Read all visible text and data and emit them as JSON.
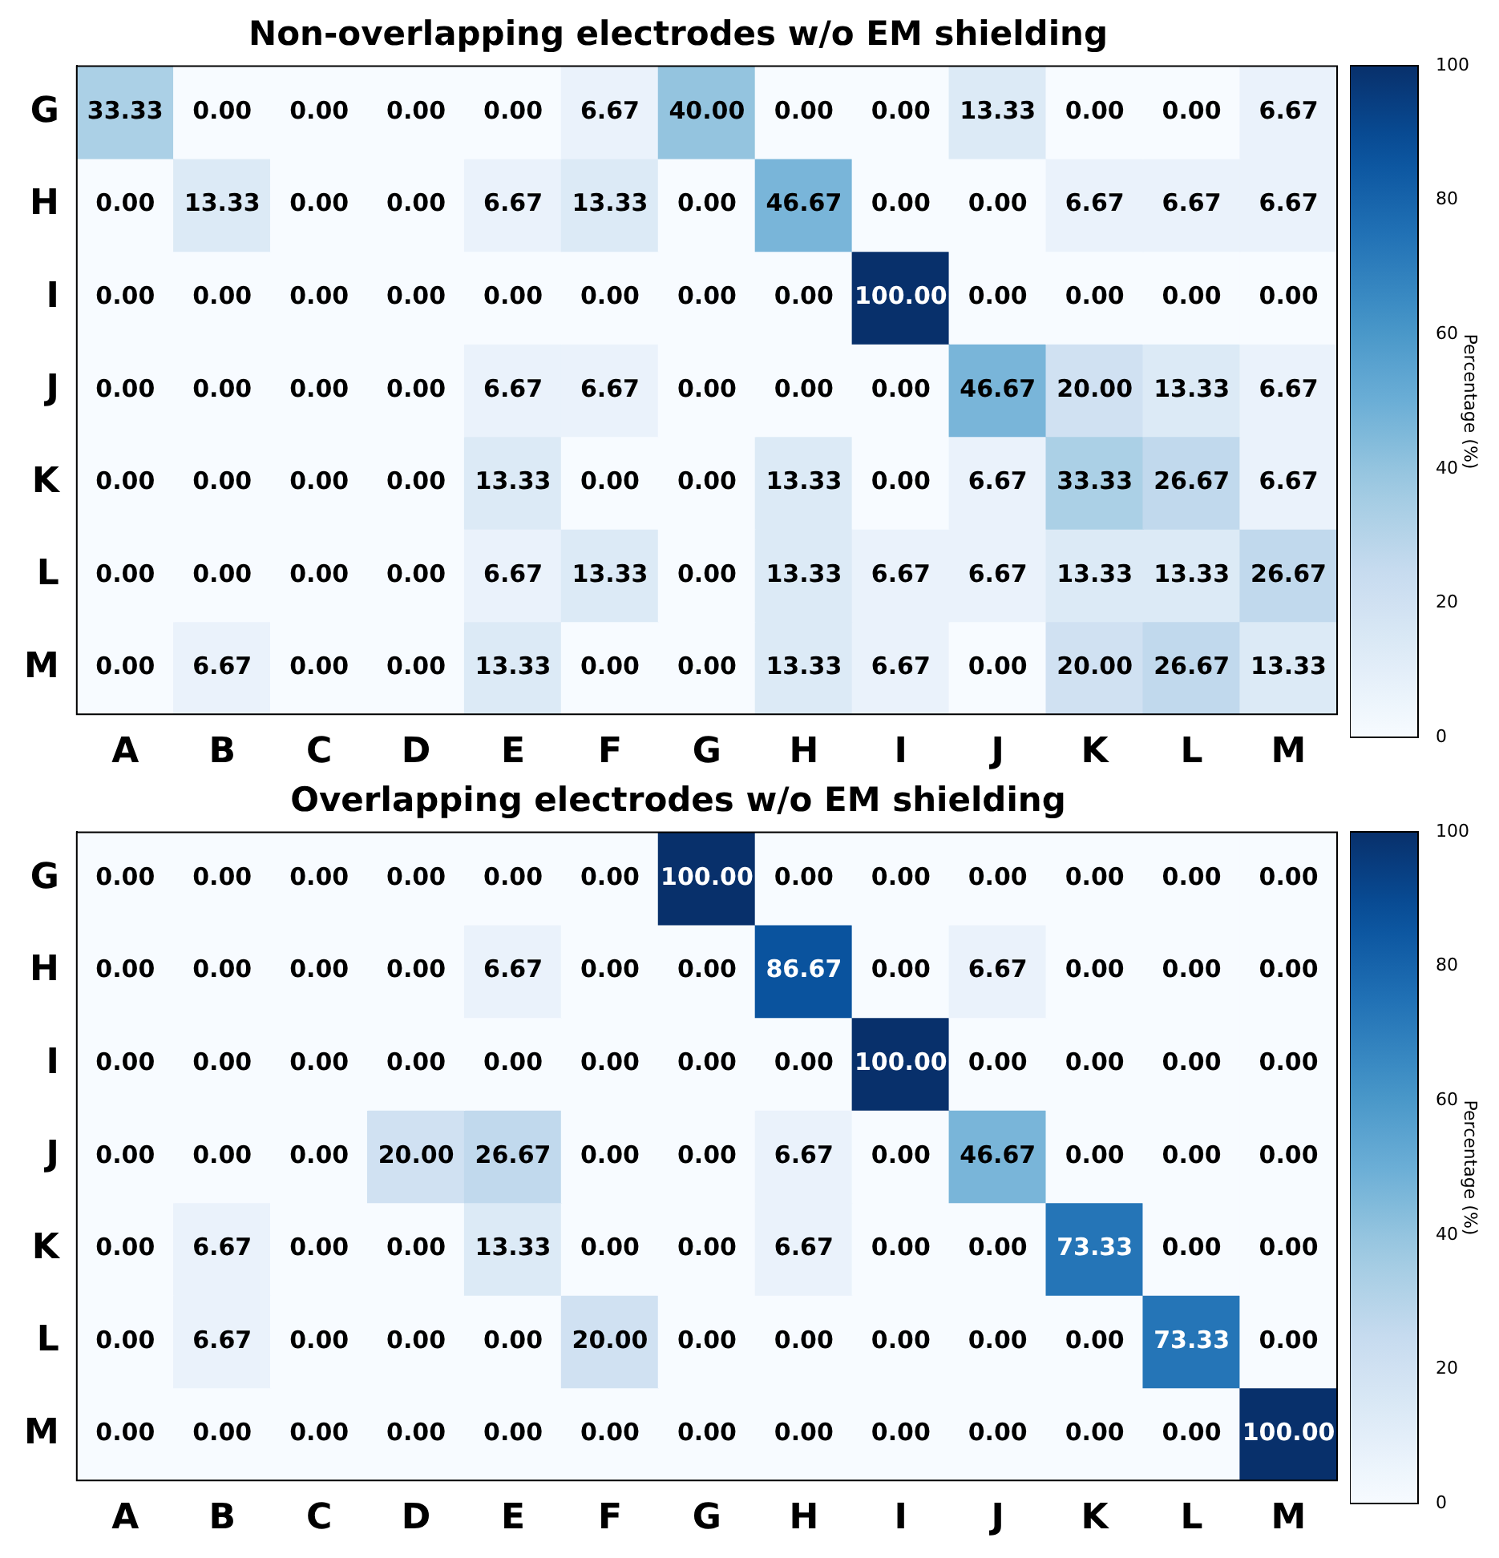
{
  "chart_data": [
    {
      "type": "heatmap",
      "title": "Non-overlapping electrodes w/o EM shielding",
      "clabel": "Percentage (%)",
      "categories": [
        "A",
        "B",
        "C",
        "D",
        "E",
        "F",
        "G",
        "H",
        "I",
        "J",
        "K",
        "L",
        "M"
      ],
      "y_categories": [
        "G",
        "H",
        "I",
        "J",
        "K",
        "L",
        "M"
      ],
      "cells": [
        [
          33.33,
          0,
          0,
          0,
          0,
          6.67,
          40,
          0,
          0,
          13.33,
          0,
          0,
          6.67
        ],
        [
          0,
          13.33,
          0,
          0,
          6.67,
          13.33,
          0,
          46.67,
          0,
          0,
          6.67,
          6.67,
          6.67
        ],
        [
          0,
          0,
          0,
          0,
          0,
          0,
          0,
          0,
          100,
          0,
          0,
          0,
          0
        ],
        [
          0,
          0,
          0,
          0,
          6.67,
          6.67,
          0,
          0,
          0,
          46.67,
          20,
          13.33,
          6.67
        ],
        [
          0,
          0,
          0,
          0,
          13.33,
          0,
          0,
          13.33,
          0,
          6.67,
          33.33,
          26.67,
          6.67
        ],
        [
          0,
          0,
          0,
          0,
          6.67,
          13.33,
          0,
          13.33,
          6.67,
          6.67,
          13.33,
          13.33,
          26.67
        ],
        [
          0,
          6.67,
          0,
          0,
          13.33,
          0,
          0,
          13.33,
          6.67,
          0,
          20,
          26.67,
          13.33
        ]
      ],
      "cell_labels": [
        [
          "33.33",
          "0.00",
          "0.00",
          "0.00",
          "0.00",
          "6.67",
          "40.00",
          "0.00",
          "0.00",
          "13.33",
          "0.00",
          "0.00",
          "6.67"
        ],
        [
          "0.00",
          "13.33",
          "0.00",
          "0.00",
          "6.67",
          "13.33",
          "0.00",
          "46.67",
          "0.00",
          "0.00",
          "6.67",
          "6.67",
          "6.67"
        ],
        [
          "0.00",
          "0.00",
          "0.00",
          "0.00",
          "0.00",
          "0.00",
          "0.00",
          "0.00",
          "100.00",
          "0.00",
          "0.00",
          "0.00",
          "0.00"
        ],
        [
          "0.00",
          "0.00",
          "0.00",
          "0.00",
          "6.67",
          "6.67",
          "0.00",
          "0.00",
          "0.00",
          "46.67",
          "20.00",
          "13.33",
          "6.67"
        ],
        [
          "0.00",
          "0.00",
          "0.00",
          "0.00",
          "13.33",
          "0.00",
          "0.00",
          "13.33",
          "0.00",
          "6.67",
          "33.33",
          "26.67",
          "6.67"
        ],
        [
          "0.00",
          "0.00",
          "0.00",
          "0.00",
          "6.67",
          "13.33",
          "0.00",
          "13.33",
          "6.67",
          "6.67",
          "13.33",
          "13.33",
          "26.67"
        ],
        [
          "0.00",
          "6.67",
          "0.00",
          "0.00",
          "13.33",
          "0.00",
          "0.00",
          "13.33",
          "6.67",
          "0.00",
          "20.00",
          "26.67",
          "13.33"
        ]
      ],
      "clim": [
        0,
        100
      ],
      "cticks": [
        0,
        20,
        40,
        60,
        80,
        100
      ]
    },
    {
      "type": "heatmap",
      "title": "Overlapping electrodes w/o EM shielding",
      "clabel": "Percentage (%)",
      "categories": [
        "A",
        "B",
        "C",
        "D",
        "E",
        "F",
        "G",
        "H",
        "I",
        "J",
        "K",
        "L",
        "M"
      ],
      "y_categories": [
        "G",
        "H",
        "I",
        "J",
        "K",
        "L",
        "M"
      ],
      "cells": [
        [
          0,
          0,
          0,
          0,
          0,
          0,
          100,
          0,
          0,
          0,
          0,
          0,
          0
        ],
        [
          0,
          0,
          0,
          0,
          6.67,
          0,
          0,
          86.67,
          0,
          6.67,
          0,
          0,
          0
        ],
        [
          0,
          0,
          0,
          0,
          0,
          0,
          0,
          0,
          100,
          0,
          0,
          0,
          0
        ],
        [
          0,
          0,
          0,
          20,
          26.67,
          0,
          0,
          6.67,
          0,
          46.67,
          0,
          0,
          0
        ],
        [
          0,
          6.67,
          0,
          0,
          13.33,
          0,
          0,
          6.67,
          0,
          0,
          73.33,
          0,
          0
        ],
        [
          0,
          6.67,
          0,
          0,
          0,
          20,
          0,
          0,
          0,
          0,
          0,
          73.33,
          0
        ],
        [
          0,
          0,
          0,
          0,
          0,
          0,
          0,
          0,
          0,
          0,
          0,
          0,
          100
        ]
      ],
      "cell_labels": [
        [
          "0.00",
          "0.00",
          "0.00",
          "0.00",
          "0.00",
          "0.00",
          "100.00",
          "0.00",
          "0.00",
          "0.00",
          "0.00",
          "0.00",
          "0.00"
        ],
        [
          "0.00",
          "0.00",
          "0.00",
          "0.00",
          "6.67",
          "0.00",
          "0.00",
          "86.67",
          "0.00",
          "6.67",
          "0.00",
          "0.00",
          "0.00"
        ],
        [
          "0.00",
          "0.00",
          "0.00",
          "0.00",
          "0.00",
          "0.00",
          "0.00",
          "0.00",
          "100.00",
          "0.00",
          "0.00",
          "0.00",
          "0.00"
        ],
        [
          "0.00",
          "0.00",
          "0.00",
          "20.00",
          "26.67",
          "0.00",
          "0.00",
          "6.67",
          "0.00",
          "46.67",
          "0.00",
          "0.00",
          "0.00"
        ],
        [
          "0.00",
          "6.67",
          "0.00",
          "0.00",
          "13.33",
          "0.00",
          "0.00",
          "6.67",
          "0.00",
          "0.00",
          "73.33",
          "0.00",
          "0.00"
        ],
        [
          "0.00",
          "6.67",
          "0.00",
          "0.00",
          "0.00",
          "20.00",
          "0.00",
          "0.00",
          "0.00",
          "0.00",
          "0.00",
          "73.33",
          "0.00"
        ],
        [
          "0.00",
          "0.00",
          "0.00",
          "0.00",
          "0.00",
          "0.00",
          "0.00",
          "0.00",
          "0.00",
          "0.00",
          "0.00",
          "0.00",
          "100.00"
        ]
      ],
      "clim": [
        0,
        100
      ],
      "cticks": [
        0,
        20,
        40,
        60,
        80,
        100
      ]
    }
  ]
}
